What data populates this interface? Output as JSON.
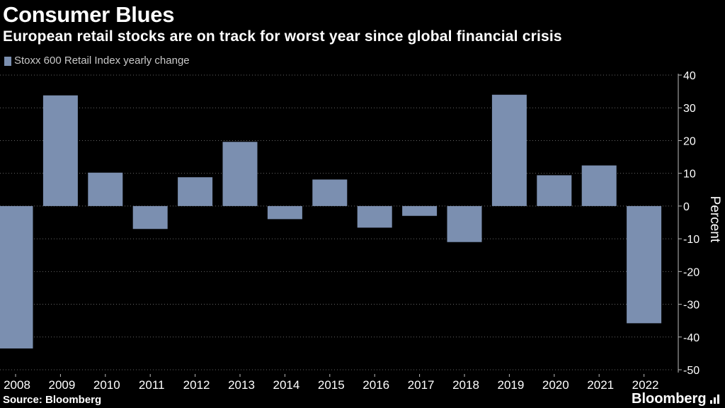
{
  "header": {
    "title": "Consumer Blues",
    "subtitle": "European retail stocks are on track for worst year since global financial crisis"
  },
  "legend": {
    "label": "Stoxx 600 Retail Index yearly change",
    "color": "#7b8fb0"
  },
  "footer": {
    "source": "Source: Bloomberg",
    "brand": "Bloomberg",
    "brand_icon": "signal-bars-icon"
  },
  "colors": {
    "background": "#000000",
    "bar": "#7b8fb0",
    "grid": "#666666",
    "text": "#ffffff"
  },
  "chart_data": {
    "type": "bar",
    "title": "Consumer Blues",
    "subtitle": "European retail stocks are on track for worst year since global financial crisis",
    "categories": [
      "2008",
      "2009",
      "2010",
      "2011",
      "2012",
      "2013",
      "2014",
      "2015",
      "2016",
      "2017",
      "2018",
      "2019",
      "2020",
      "2021",
      "2022"
    ],
    "series": [
      {
        "name": "Stoxx 600 Retail Index yearly change",
        "values": [
          -43.5,
          33.8,
          10.2,
          -7.0,
          8.8,
          19.6,
          -4.0,
          8.1,
          -6.6,
          -3.0,
          -11.0,
          34.0,
          9.4,
          12.4,
          -35.8
        ]
      }
    ],
    "xlabel": "",
    "ylabel": "Percent",
    "ylim": [
      -50,
      40
    ],
    "yticks": [
      40,
      30,
      20,
      10,
      0,
      -10,
      -20,
      -30,
      -40,
      -50
    ],
    "ytick_labels": [
      "40",
      "30",
      "20",
      "10",
      "0",
      "-10",
      "-20",
      "-30",
      "-40",
      "-50"
    ],
    "grid": true,
    "axis_position": "right",
    "legend_position": "top-left"
  }
}
